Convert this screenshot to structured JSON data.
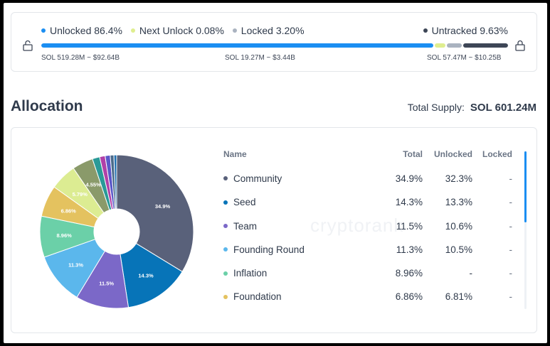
{
  "unlock_status": {
    "legend": [
      {
        "label": "Unlocked 86.4%",
        "color": "#1b8ef2"
      },
      {
        "label": "Next Unlock 0.08%",
        "color": "#dfee8f"
      },
      {
        "label": "Locked 3.20%",
        "color": "#aab3c0"
      },
      {
        "label": "Untracked 9.63%",
        "color": "#3d4656"
      }
    ],
    "progress": [
      {
        "share": 86.4,
        "color": "#1b8ef2"
      },
      {
        "share": 0.08,
        "color": "#dfee8f"
      },
      {
        "share": 3.2,
        "color": "#aab3c0"
      },
      {
        "share": 9.63,
        "color": "#3d4656"
      }
    ],
    "amounts": {
      "unlocked": "SOL 519.28M ~ $92.64B",
      "locked": "SOL 19.27M ~ $3.44B",
      "untracked": "SOL 57.47M ~ $10.25B"
    },
    "icons": [
      "lock-open-icon",
      "lock-icon"
    ]
  },
  "allocation": {
    "title": "Allocation",
    "total_supply_label": "Total Supply:",
    "total_supply_value": "SOL 601.24M",
    "watermark": "cryptorank",
    "columns": {
      "name": "Name",
      "total": "Total",
      "unlocked": "Unlocked",
      "locked": "Locked"
    },
    "rows": [
      {
        "name": "Community",
        "total": "34.9%",
        "unlocked": "32.3%",
        "locked": "-",
        "color": "#59617a"
      },
      {
        "name": "Seed",
        "total": "14.3%",
        "unlocked": "13.3%",
        "locked": "-",
        "color": "#0774b8"
      },
      {
        "name": "Team",
        "total": "11.5%",
        "unlocked": "10.6%",
        "locked": "-",
        "color": "#7b68c8"
      },
      {
        "name": "Founding Round",
        "total": "11.3%",
        "unlocked": "10.5%",
        "locked": "-",
        "color": "#5bb7ec"
      },
      {
        "name": "Inflation",
        "total": "8.96%",
        "unlocked": "-",
        "locked": "-",
        "color": "#6bd0a8"
      },
      {
        "name": "Foundation",
        "total": "6.86%",
        "unlocked": "6.81%",
        "locked": "-",
        "color": "#e4c25f"
      }
    ]
  },
  "chart_data": {
    "type": "pie",
    "donut": true,
    "slices": [
      {
        "label": "34.9%",
        "value": 34.9,
        "color": "#59617a"
      },
      {
        "label": "14.3%",
        "value": 14.3,
        "color": "#0774b8"
      },
      {
        "label": "11.5%",
        "value": 11.5,
        "color": "#7b68c8"
      },
      {
        "label": "11.3%",
        "value": 11.3,
        "color": "#5bb7ec"
      },
      {
        "label": "8.96%",
        "value": 8.96,
        "color": "#6bd0a8"
      },
      {
        "label": "6.86%",
        "value": 6.86,
        "color": "#e4c25f"
      },
      {
        "label": "5.79%",
        "value": 5.79,
        "color": "#dcec92"
      },
      {
        "label": "4.55%",
        "value": 4.55,
        "color": "#8a9a6a"
      },
      {
        "label": "",
        "value": 1.6,
        "color": "#2a9a98"
      },
      {
        "label": "",
        "value": 1.2,
        "color": "#b040a8"
      },
      {
        "label": "",
        "value": 1.1,
        "color": "#5a58c8"
      },
      {
        "label": "",
        "value": 0.8,
        "color": "#4a6a8a"
      },
      {
        "label": "",
        "value": 0.6,
        "color": "#2070b0"
      }
    ]
  }
}
